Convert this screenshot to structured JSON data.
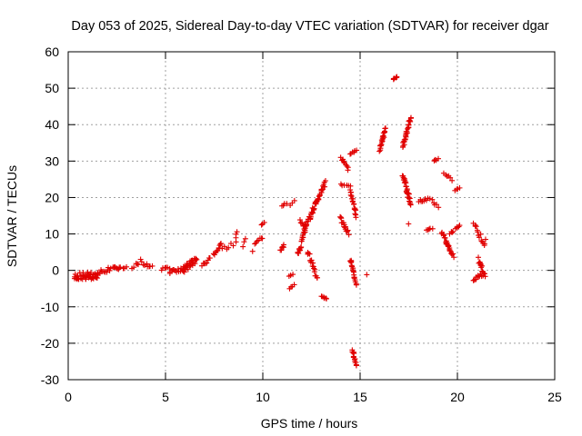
{
  "chart_data": {
    "type": "scatter",
    "title": "Day 053 of 2025, Sidereal Day-to-day VTEC variation (SDTVAR) for receiver dgar",
    "xlabel": "GPS time / hours",
    "ylabel": "SDTVAR / TECUs",
    "xlim": [
      0,
      25
    ],
    "ylim": [
      -30,
      60
    ],
    "xticks": [
      0,
      5,
      10,
      15,
      20,
      25
    ],
    "yticks": [
      -30,
      -20,
      -10,
      0,
      10,
      20,
      30,
      40,
      50,
      60
    ],
    "grid": true,
    "marker": "plus",
    "color": "#e00000",
    "segments": [
      {
        "x": [
          0.3,
          1.5
        ],
        "y": [
          -1.5,
          -1.5
        ],
        "spread": 2.0,
        "n": 45
      },
      {
        "x": [
          1.5,
          2.6
        ],
        "y": [
          -0.5,
          0.8
        ],
        "spread": 1.2,
        "n": 18
      },
      {
        "x": [
          2.6,
          3.0
        ],
        "y": [
          0.5,
          0.8
        ],
        "spread": 0.6,
        "n": 5
      },
      {
        "x": [
          3.3,
          3.7
        ],
        "y": [
          1.0,
          2.5
        ],
        "spread": 1.2,
        "n": 6
      },
      {
        "x": [
          3.8,
          4.3
        ],
        "y": [
          2.0,
          1.0
        ],
        "spread": 0.8,
        "n": 8
      },
      {
        "x": [
          4.8,
          5.2
        ],
        "y": [
          0.5,
          0.8
        ],
        "spread": 1.2,
        "n": 6
      },
      {
        "x": [
          5.2,
          6.0
        ],
        "y": [
          -0.5,
          0.5
        ],
        "spread": 1.0,
        "n": 14
      },
      {
        "x": [
          5.9,
          6.6
        ],
        "y": [
          0.0,
          3.0
        ],
        "spread": 2.2,
        "n": 30
      },
      {
        "x": [
          6.9,
          7.3
        ],
        "y": [
          1.0,
          3.5
        ],
        "spread": 1.2,
        "n": 8
      },
      {
        "x": [
          7.5,
          7.9
        ],
        "y": [
          4.0,
          7.0
        ],
        "spread": 2.0,
        "n": 12
      },
      {
        "x": [
          8.0,
          8.6
        ],
        "y": [
          6.0,
          7.0
        ],
        "spread": 2.0,
        "n": 6
      },
      {
        "x": [
          8.6,
          8.7
        ],
        "y": [
          9.0,
          10.5
        ],
        "spread": 0.5,
        "n": 3
      },
      {
        "x": [
          9.0,
          9.1
        ],
        "y": [
          7.0,
          8.5
        ],
        "spread": 1.0,
        "n": 3
      },
      {
        "x": [
          9.5,
          10.0
        ],
        "y": [
          6.0,
          9.5
        ],
        "spread": 2.0,
        "n": 8
      },
      {
        "x": [
          9.95,
          10.05
        ],
        "y": [
          12.5,
          13.2
        ],
        "spread": 0.3,
        "n": 3
      },
      {
        "x": [
          10.9,
          11.1
        ],
        "y": [
          5.5,
          7.0
        ],
        "spread": 0.8,
        "n": 6
      },
      {
        "x": [
          11.0,
          11.2
        ],
        "y": [
          17.5,
          18.5
        ],
        "spread": 0.5,
        "n": 4
      },
      {
        "x": [
          11.4,
          11.6
        ],
        "y": [
          18.0,
          19.0
        ],
        "spread": 0.4,
        "n": 3
      },
      {
        "x": [
          11.35,
          11.55
        ],
        "y": [
          -1.5,
          -1.0
        ],
        "spread": 0.4,
        "n": 3
      },
      {
        "x": [
          11.4,
          11.6
        ],
        "y": [
          -5.0,
          -4.0
        ],
        "spread": 0.5,
        "n": 4
      },
      {
        "x": [
          11.8,
          12.2
        ],
        "y": [
          4.0,
          12.0
        ],
        "spread": 1.5,
        "n": 22
      },
      {
        "x": [
          11.9,
          12.2
        ],
        "y": [
          14.0,
          11.0
        ],
        "spread": 1.0,
        "n": 8
      },
      {
        "x": [
          12.2,
          12.7
        ],
        "y": [
          12.0,
          18.0
        ],
        "spread": 1.5,
        "n": 22
      },
      {
        "x": [
          12.3,
          12.8
        ],
        "y": [
          5.0,
          -2.0
        ],
        "spread": 1.5,
        "n": 18
      },
      {
        "x": [
          12.7,
          13.2
        ],
        "y": [
          18.0,
          24.0
        ],
        "spread": 1.2,
        "n": 26
      },
      {
        "x": [
          13.0,
          13.3
        ],
        "y": [
          -7.0,
          -8.0
        ],
        "spread": 0.5,
        "n": 6
      },
      {
        "x": [
          14.0,
          14.4
        ],
        "y": [
          31.0,
          28.0
        ],
        "spread": 1.0,
        "n": 10
      },
      {
        "x": [
          14.0,
          14.5
        ],
        "y": [
          23.5,
          23.0
        ],
        "spread": 0.5,
        "n": 6
      },
      {
        "x": [
          14.0,
          14.4
        ],
        "y": [
          14.5,
          10.0
        ],
        "spread": 1.2,
        "n": 16
      },
      {
        "x": [
          14.5,
          14.8
        ],
        "y": [
          32.0,
          33.0
        ],
        "spread": 0.5,
        "n": 6
      },
      {
        "x": [
          14.5,
          14.8
        ],
        "y": [
          22.0,
          15.0
        ],
        "spread": 1.5,
        "n": 18
      },
      {
        "x": [
          14.5,
          14.8
        ],
        "y": [
          3.0,
          -4.0
        ],
        "spread": 1.0,
        "n": 18
      },
      {
        "x": [
          14.6,
          14.8
        ],
        "y": [
          -22.0,
          -26.0
        ],
        "spread": 1.0,
        "n": 14
      },
      {
        "x": [
          15.3,
          15.4
        ],
        "y": [
          -1.2,
          -1.2
        ],
        "spread": 0.2,
        "n": 1
      },
      {
        "x": [
          16.0,
          16.3
        ],
        "y": [
          33.0,
          39.0
        ],
        "spread": 1.0,
        "n": 22
      },
      {
        "x": [
          16.7,
          16.9
        ],
        "y": [
          52.5,
          53.2
        ],
        "spread": 0.4,
        "n": 6
      },
      {
        "x": [
          17.2,
          17.6
        ],
        "y": [
          34.0,
          42.0
        ],
        "spread": 1.0,
        "n": 28
      },
      {
        "x": [
          17.2,
          17.6
        ],
        "y": [
          26.0,
          18.0
        ],
        "spread": 1.5,
        "n": 30
      },
      {
        "x": [
          17.45,
          17.5
        ],
        "y": [
          12.8,
          12.8
        ],
        "spread": 0.2,
        "n": 1
      },
      {
        "x": [
          18.0,
          18.5
        ],
        "y": [
          19.0,
          19.5
        ],
        "spread": 0.6,
        "n": 8
      },
      {
        "x": [
          18.6,
          19.0
        ],
        "y": [
          20.0,
          17.0
        ],
        "spread": 1.0,
        "n": 6
      },
      {
        "x": [
          18.4,
          18.7
        ],
        "y": [
          11.0,
          11.5
        ],
        "spread": 0.6,
        "n": 5
      },
      {
        "x": [
          18.8,
          19.0
        ],
        "y": [
          30.0,
          30.5
        ],
        "spread": 0.4,
        "n": 4
      },
      {
        "x": [
          19.3,
          19.7
        ],
        "y": [
          26.5,
          25.0
        ],
        "spread": 0.8,
        "n": 6
      },
      {
        "x": [
          19.2,
          19.6
        ],
        "y": [
          10.5,
          6.0
        ],
        "spread": 1.0,
        "n": 14
      },
      {
        "x": [
          19.4,
          19.8
        ],
        "y": [
          8.0,
          4.0
        ],
        "spread": 1.2,
        "n": 12
      },
      {
        "x": [
          19.6,
          19.8
        ],
        "y": [
          10.0,
          11.0
        ],
        "spread": 0.8,
        "n": 4
      },
      {
        "x": [
          19.9,
          20.1
        ],
        "y": [
          22.0,
          22.5
        ],
        "spread": 0.4,
        "n": 4
      },
      {
        "x": [
          19.9,
          20.1
        ],
        "y": [
          11.5,
          12.0
        ],
        "spread": 0.8,
        "n": 5
      },
      {
        "x": [
          20.85,
          21.4
        ],
        "y": [
          13.0,
          7.0
        ],
        "spread": 1.5,
        "n": 14
      },
      {
        "x": [
          20.8,
          21.3
        ],
        "y": [
          -2.5,
          -1.0
        ],
        "spread": 1.0,
        "n": 12
      },
      {
        "x": [
          21.1,
          21.4
        ],
        "y": [
          3.0,
          -1.5
        ],
        "spread": 1.5,
        "n": 16
      },
      {
        "x": [
          21.4,
          21.5
        ],
        "y": [
          8.5,
          8.5
        ],
        "spread": 0.2,
        "n": 1
      }
    ]
  }
}
